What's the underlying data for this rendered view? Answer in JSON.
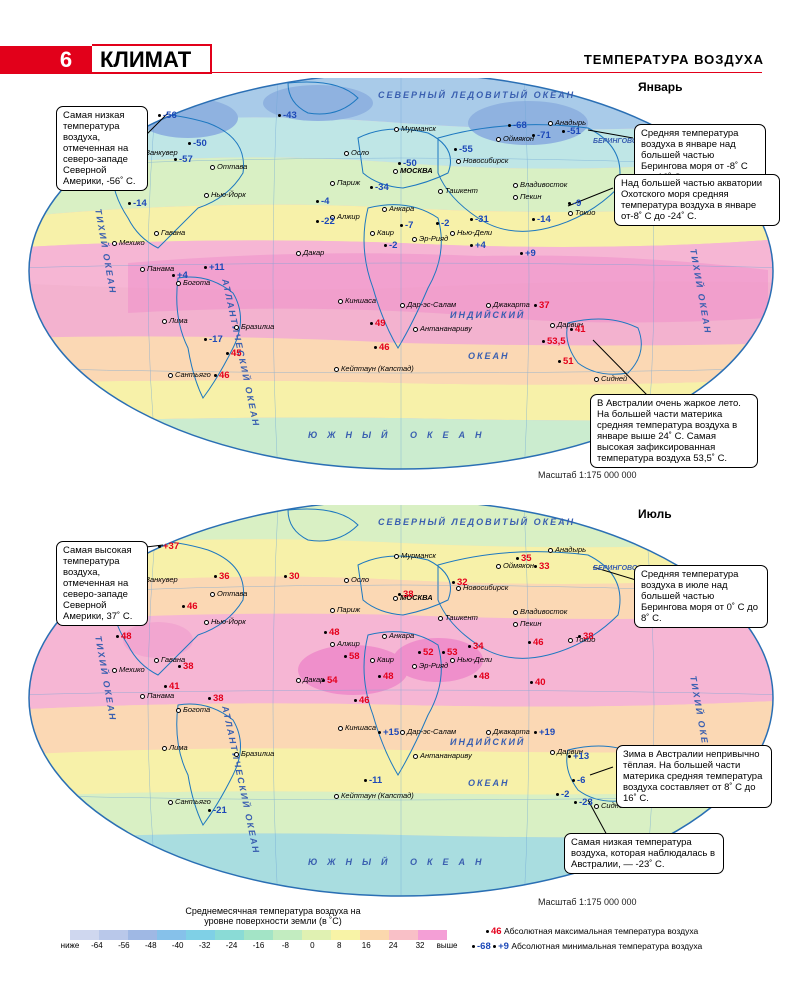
{
  "header": {
    "number": "6",
    "title": "КЛИМАТ",
    "section": "ТЕМПЕРАТУРА ВОЗДУХА"
  },
  "scale_label": "Масштаб 1:175 000 000",
  "oceans": {
    "arctic": "СЕВЕРНЫЙ ЛЕДОВИТЫЙ ОКЕАН",
    "atlantic": "АТЛАНТИЧЕСКИЙ ОКЕАН",
    "indian_1": "ИНДИЙСКИЙ",
    "indian_2": "ОКЕАН",
    "southern": "ЮЖНЫЙ ОКЕАН",
    "pacific_left": "ТИХИЙ ОКЕАН",
    "pacific_right": "ТИХИЙ ОКЕАН",
    "bering_sea": "БЕРИНГОВО МОРЕ"
  },
  "cities": {
    "anchorage": "Анадырь",
    "oymyakon": "Оймякон",
    "murmansk": "Мурманск",
    "oslo": "Осло",
    "moscow": "МОСКВА",
    "paris": "Париж",
    "novosibirsk": "Новосибирск",
    "tashkent": "Ташкент",
    "vladivostok": "Владивосток",
    "beijing": "Пекин",
    "tokyo": "Токио",
    "vancouver": "Ванкувер",
    "ottawa": "Оттава",
    "newyork": "Нью-Йорк",
    "ankara": "Анкара",
    "algiers": "Алжир",
    "cairo": "Каир",
    "riyadh": "Эр-Рияд",
    "delhi": "Нью-Дели",
    "havana": "Гавана",
    "mexico": "Мехико",
    "panama": "Панама",
    "bogota": "Богота",
    "dakar": "Дакар",
    "kinshasa": "Киншаса",
    "dar": "Дар-эс-Салам",
    "jakarta": "Джакарта",
    "darwin": "Дарвин",
    "lima": "Лима",
    "brasilia": "Бразилиа",
    "antananarivo": "Антананариву",
    "santiago": "Сантьяго",
    "capetown": "Кейптаун (Капстад)",
    "sydney": "Сидней"
  },
  "january": {
    "season": "Январь",
    "max_temps": [
      "49",
      "46",
      "45",
      "46",
      "37",
      "41",
      "53,5",
      "51"
    ],
    "min_temps": [
      "-56",
      "-43",
      "-68",
      "-71",
      "-51",
      "-50",
      "-57",
      "-50",
      "-55",
      "-34",
      "-14",
      "-4",
      "-22",
      "-7",
      "-2",
      "-31",
      "-9",
      "-14",
      "-2",
      "+4",
      "+9",
      "+4",
      "+11",
      "-17"
    ],
    "callouts": {
      "low": "Самая низкая температура воздуха, отмеченная на северо-западе Северной Америки, -56˚ С.",
      "bering": "Средняя температура воздуха в январе над большей частью Берингова моря от -8˚ С до -16˚ С.",
      "okhotsk": "Над большей частью акватории Охотского моря средняя температура воздуха в январе от-8˚ С до -24˚ С.",
      "australia": "В Австралии очень жаркое лето. На большей части материка средняя температура воздуха в январе выше 24˚ С. Самая высокая зафиксированная температура воздуха 53,5˚ С."
    }
  },
  "july": {
    "season": "Июль",
    "max_temps": [
      "+37",
      "36",
      "30",
      "46",
      "48",
      "38",
      "32",
      "35",
      "33",
      "48",
      "58",
      "54",
      "46",
      "52",
      "53",
      "34",
      "48",
      "46",
      "38",
      "40",
      "38",
      "41",
      "38",
      "48"
    ],
    "min_temps": [
      "+15",
      "+19",
      "+13",
      "-6",
      "-2",
      "-23",
      "-11",
      "-21"
    ],
    "callouts": {
      "high": "Самая высокая температура воздуха, отмеченная на северо-западе Северной Америки, 37˚ С.",
      "bering": "Средняя температура воздуха в июле над большей частью Берингова моря от 0˚ С до 8˚ С.",
      "australia": "Зима в Австралии непривычно тёплая. На большей части материка средняя температура воздуха составляет от 8˚ С до 16˚ С.",
      "low": "Самая низкая температура воздуха, которая наблюдалась в Австралии, — -23˚ С."
    }
  },
  "legend": {
    "title": "Среднемесячная температура воздуха на уровне поверхности земли (в ˚С)",
    "ticks": [
      "ниже",
      "-64",
      "-56",
      "-48",
      "-40",
      "-32",
      "-24",
      "-16",
      "-8",
      "0",
      "8",
      "16",
      "24",
      "32",
      "выше"
    ],
    "colors": [
      "#cfd7ef",
      "#b9c8ea",
      "#9fb8e4",
      "#86c1ea",
      "#7fd0e6",
      "#8adbd6",
      "#a3e4c6",
      "#c2ecc0",
      "#e0f1b2",
      "#f8f3a6",
      "#fbd8ad",
      "#f9c0c7",
      "#f49fd6"
    ],
    "max_label": "Абсолютная максимальная температура воздуха",
    "max_sample": "46",
    "min_label": "Абсолютная минимальная температура воздуха",
    "min_sample_1": "-68",
    "min_sample_2": "+9"
  }
}
